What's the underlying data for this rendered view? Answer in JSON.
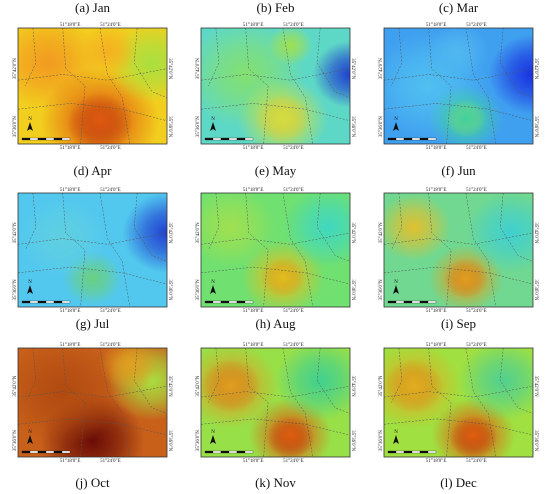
{
  "panels": [
    {
      "label": "(a) Jan"
    },
    {
      "label": "(b) Feb"
    },
    {
      "label": "(c) Mar"
    },
    {
      "label": "(d) Apr"
    },
    {
      "label": "(e) May"
    },
    {
      "label": "(f) Jun"
    },
    {
      "label": "(g) Jul"
    },
    {
      "label": "(h) Aug"
    },
    {
      "label": "(i) Sep"
    },
    {
      "label": "(j) Oct"
    },
    {
      "label": "(k) Nov"
    },
    {
      "label": "(l) Dec"
    }
  ],
  "coordinates": {
    "lon": [
      "51°18'0\"E",
      "51°24'0\"E"
    ],
    "lat": [
      "35°42'0\"N",
      "35°36'0\"N"
    ]
  },
  "north": "N"
}
